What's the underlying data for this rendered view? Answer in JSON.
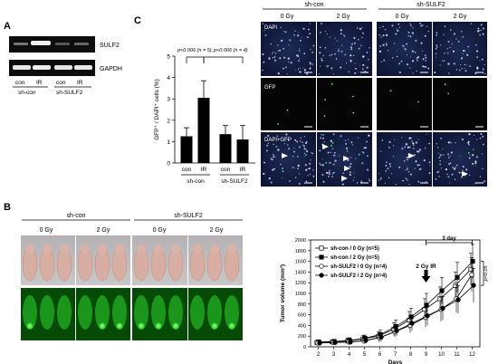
{
  "panel_letters": {
    "a": "A",
    "b": "B",
    "c": "C"
  },
  "panelA": {
    "gel_labels": [
      "SULF2",
      "GAPDH"
    ],
    "lane_labels": [
      "con",
      "IR",
      "con",
      "IR"
    ],
    "groups": [
      "sh-con",
      "sh-SULF2"
    ]
  },
  "panelC_micro": {
    "group_labels": [
      "sh-con",
      "sh-SULF2"
    ],
    "dose_labels": [
      "0 Gy",
      "2 Gy",
      "0 Gy",
      "2 Gy"
    ],
    "row_labels": [
      "DAPI",
      "GFP",
      "DAPI+GFP"
    ]
  },
  "panelB": {
    "group_labels": [
      "sh-con",
      "sh-SULF2"
    ],
    "dose_labels": [
      "0 Gy",
      "2 Gy",
      "0 Gy",
      "2 Gy"
    ]
  },
  "chart_data": [
    {
      "type": "bar",
      "ylabel": "GFP⁺ / DAPI⁺ cells (%)",
      "categories": [
        "con",
        "IR",
        "con",
        "IR"
      ],
      "groups": [
        "sh-con",
        "sh-SULF2"
      ],
      "values": [
        1.25,
        3.05,
        1.35,
        1.1
      ],
      "errors": [
        0.4,
        0.8,
        0.4,
        0.65
      ],
      "ylim": [
        0,
        5
      ],
      "yticks": [
        0,
        1,
        2,
        3,
        4,
        5
      ],
      "annotations": [
        "p<0.006 (n = 5),",
        "p<0.006 (n = 4)"
      ]
    },
    {
      "type": "line",
      "ylabel": "Tumor volume (mm³)",
      "xlabel": "Days",
      "x": [
        2,
        3,
        4,
        5,
        6,
        7,
        8,
        9,
        10,
        11,
        12
      ],
      "xlim": [
        1.5,
        12.5
      ],
      "ylim": [
        0,
        2000
      ],
      "yticks": [
        0,
        200,
        400,
        600,
        800,
        1000,
        1200,
        1400,
        1600,
        1800,
        2000
      ],
      "series": [
        {
          "name": "sh-con / 0 Gy (n=5)",
          "marker": "open-square",
          "values": [
            80,
            90,
            110,
            150,
            200,
            330,
            500,
            700,
            900,
            1150,
            1450
          ],
          "errors": [
            40,
            40,
            50,
            60,
            80,
            120,
            160,
            200,
            220,
            250,
            300
          ]
        },
        {
          "name": "sh-con / 2 Gy (n=5)",
          "marker": "filled-square",
          "values": [
            90,
            100,
            120,
            160,
            230,
            380,
            560,
            780,
            1050,
            1300,
            1600
          ],
          "errors": [
            40,
            40,
            50,
            60,
            80,
            120,
            160,
            220,
            250,
            280,
            320
          ]
        },
        {
          "name": "sh-SULF2 / 0 Gy (n=4)",
          "marker": "open-circle",
          "values": [
            70,
            80,
            90,
            110,
            170,
            280,
            400,
            550,
            700,
            900,
            1350
          ],
          "errors": [
            40,
            40,
            50,
            60,
            80,
            100,
            140,
            180,
            220,
            260,
            320
          ]
        },
        {
          "name": "sh-SULF2 / 2 Gy (n=4)",
          "marker": "filled-circle",
          "values": [
            70,
            80,
            90,
            120,
            180,
            300,
            440,
            580,
            720,
            880,
            1150
          ],
          "errors": [
            40,
            40,
            50,
            60,
            80,
            100,
            140,
            180,
            220,
            260,
            320
          ]
        }
      ],
      "annotations": {
        "arrow": "2 Gy IR",
        "bracket": "3 day",
        "pvalue": "p<0.05"
      }
    }
  ]
}
